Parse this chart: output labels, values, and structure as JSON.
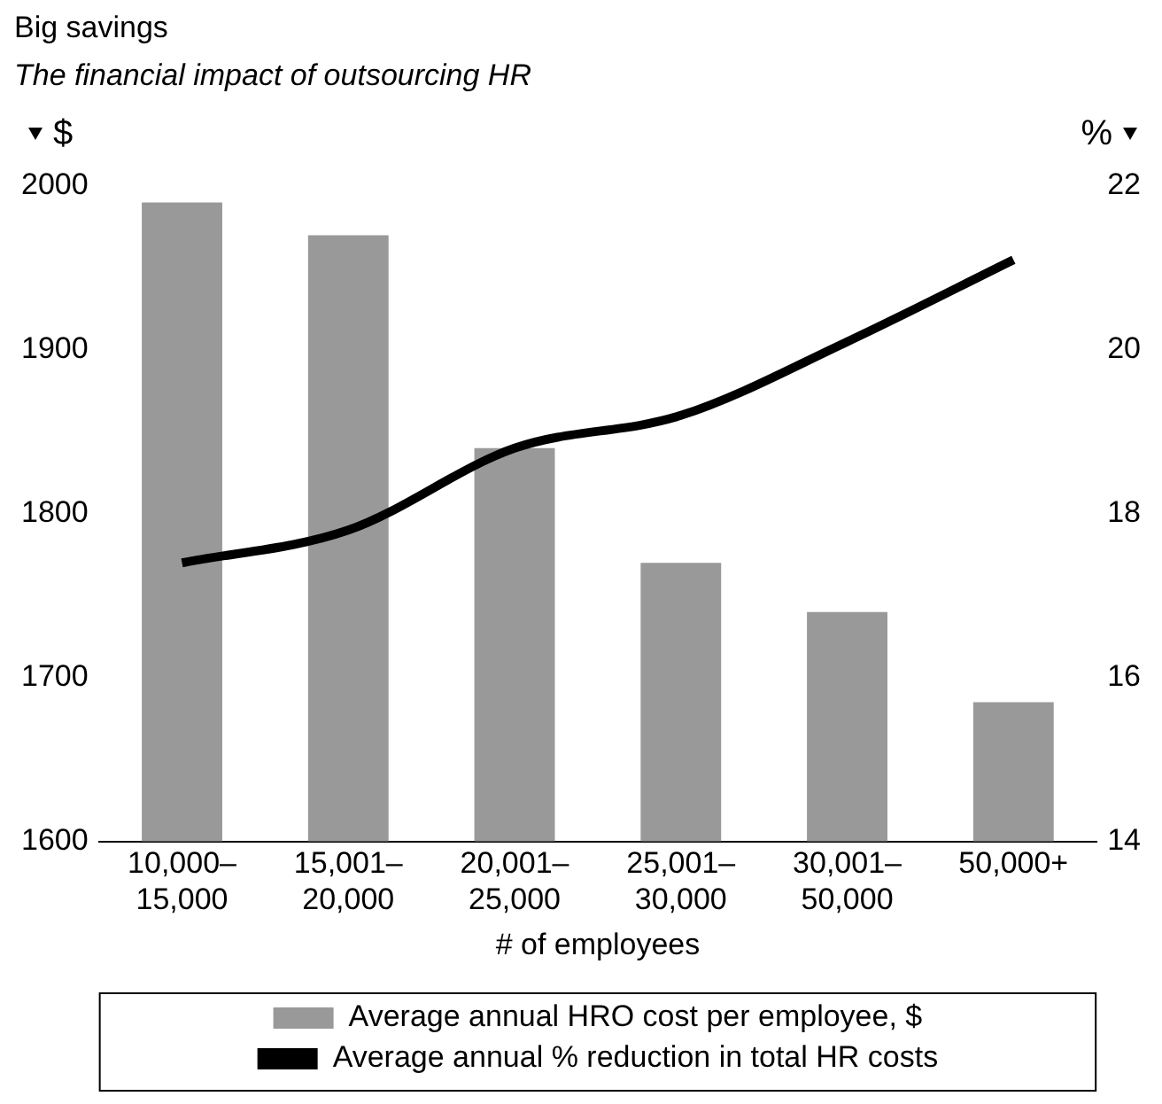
{
  "chart_data": {
    "type": "bar",
    "title": "Big savings",
    "subtitle": "The financial impact of outsourcing HR",
    "xlabel": "# of employees",
    "ylabel": "$",
    "y2label": "%",
    "categories": [
      "10,000–15,000",
      "15,001–20,000",
      "20,001–25,000",
      "25,001–30,000",
      "30,001–50,000",
      "50,000+"
    ],
    "series": [
      {
        "name": "Average annual HRO cost per employee, $",
        "color": "#999999",
        "values": [
          1990,
          1970,
          1840,
          1770,
          1740,
          1685
        ]
      },
      {
        "name": "Average annual % reduction in total HR costs",
        "type": "line",
        "axis": "y2",
        "color": "#000000",
        "values": [
          17.4,
          17.8,
          18.8,
          19.2,
          20.1,
          21.1
        ]
      }
    ],
    "ylim": [
      1600,
      2000
    ],
    "yticks": [
      1600,
      1700,
      1800,
      1900,
      2000
    ],
    "y2lim": [
      14,
      22
    ],
    "y2ticks": [
      14,
      16,
      18,
      20,
      22
    ],
    "grid": false,
    "legend": "bottom",
    "marker": "none",
    "line_style": "solid"
  }
}
